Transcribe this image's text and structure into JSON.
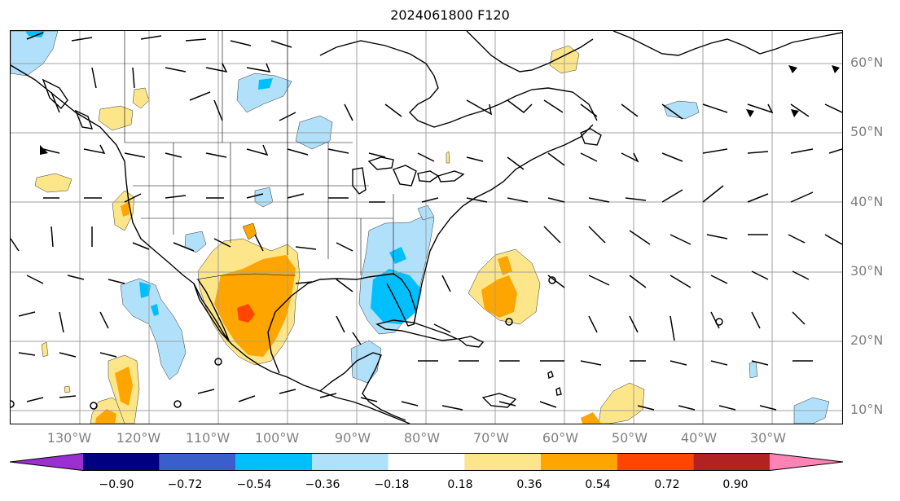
{
  "title": "2024061800 F120",
  "lat_labels": [
    "60°N",
    "50°N",
    "40°N",
    "30°N",
    "20°N",
    "10°N"
  ],
  "lon_labels": [
    "130°W",
    "120°W",
    "110°W",
    "100°W",
    "90°W",
    "80°W",
    "70°W",
    "60°W",
    "50°W",
    "40°W",
    "30°W"
  ],
  "colorbar": {
    "ticks": [
      "−0.90",
      "−0.72",
      "−0.54",
      "−0.36",
      "−0.18",
      "0.18",
      "0.36",
      "0.54",
      "0.72",
      "0.90"
    ],
    "colors": [
      "#9b30d0",
      "#000080",
      "#3a5fcd",
      "#00bfff",
      "#b0e0fa",
      "#ffffff",
      "#fde68a",
      "#ffa500",
      "#ff4500",
      "#b22222",
      "#ff83b4"
    ]
  },
  "colors": {
    "coastline": "#000000",
    "grid": "#a0a0a0",
    "light_blue": "#b0e0fa",
    "blue": "#00bfff",
    "yellow": "#fde68a",
    "orange": "#ffa500",
    "red_orange": "#ff4500"
  }
}
